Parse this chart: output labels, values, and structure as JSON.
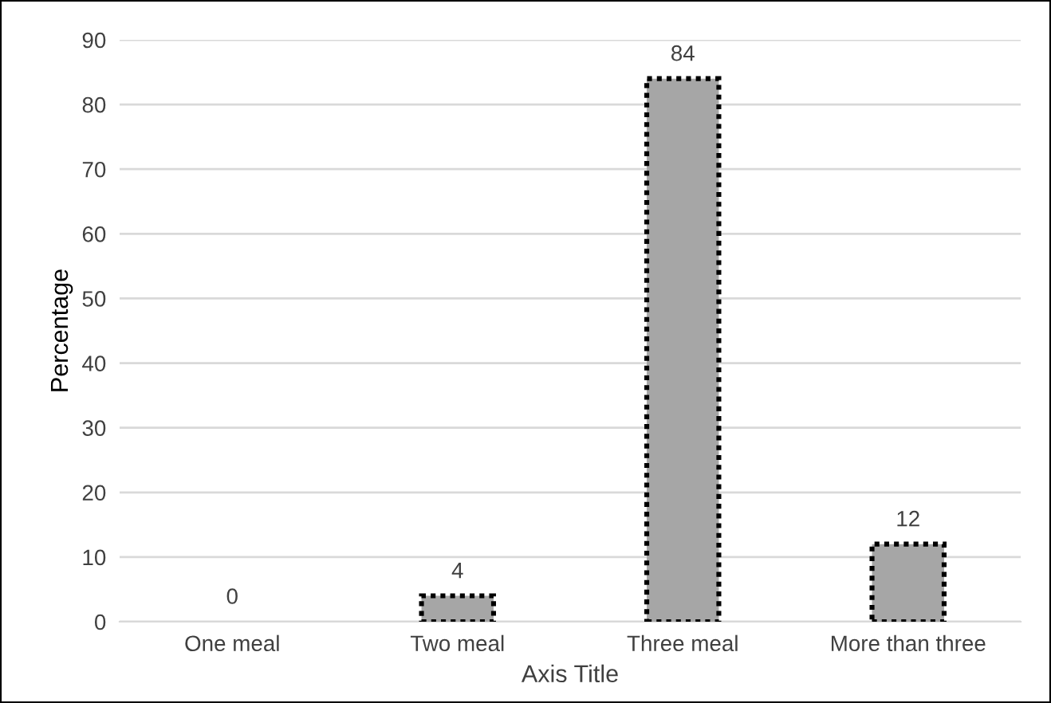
{
  "chart_data": {
    "type": "bar",
    "xlabel": "Axis Title",
    "ylabel": "Percentage",
    "categories": [
      "One meal",
      "Two meal",
      "Three meal",
      "More than three"
    ],
    "values": [
      0,
      4,
      84,
      12
    ],
    "color": "#a6a6a6",
    "ylim": [
      0,
      90
    ],
    "yticks": [
      0,
      10,
      20,
      30,
      40,
      50,
      60,
      70,
      80,
      90
    ],
    "grid": "y",
    "data_labels": true,
    "legend": false
  }
}
